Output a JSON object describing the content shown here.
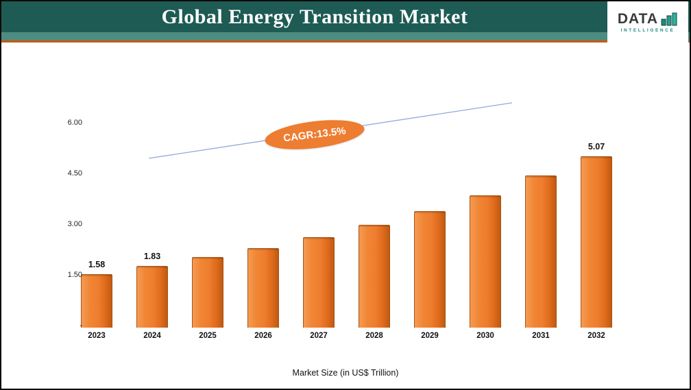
{
  "header": {
    "title": "Global Energy Transition Market",
    "logo_text": "DATA",
    "logo_subtext": "INTELLIGENCE"
  },
  "chart_data": {
    "type": "bar",
    "title": "Global Energy Transition Market",
    "xlabel": "Market Size (in US$ Trillion)",
    "categories": [
      "2023",
      "2024",
      "2025",
      "2026",
      "2027",
      "2028",
      "2029",
      "2030",
      "2031",
      "2032"
    ],
    "values": [
      1.58,
      1.83,
      2.08,
      2.36,
      2.68,
      3.04,
      3.44,
      3.91,
      4.5,
      5.07
    ],
    "data_labels": {
      "0": "1.58",
      "1": "1.83",
      "9": "5.07"
    },
    "yticks": [
      {
        "value": 0,
        "label": "-"
      },
      {
        "value": 1.5,
        "label": "1.50"
      },
      {
        "value": 3,
        "label": "3.00"
      },
      {
        "value": 4.5,
        "label": "4.50"
      },
      {
        "value": 6,
        "label": "6.00"
      }
    ],
    "ylim": [
      0,
      6.6
    ],
    "annotation": "CAGR:13.5%",
    "bar_color": "#ED7D31",
    "trend_line_color": "#8EA9DB",
    "legend": "none",
    "grid": false
  },
  "colors": {
    "header_bg": "#1E5B54",
    "strip": "#4E8C82",
    "rule": "#C55A11",
    "accent_orange": "#ED7D31",
    "logo_teal": "#1E8A7E"
  }
}
